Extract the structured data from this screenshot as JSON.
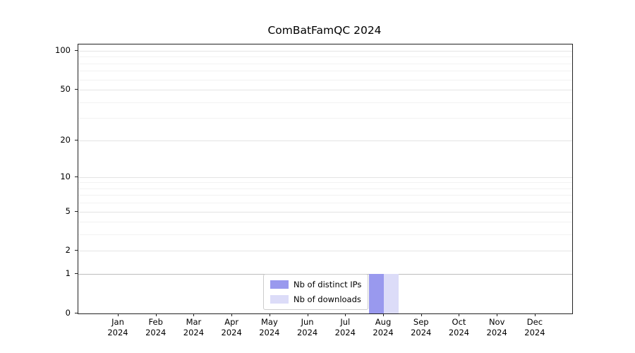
{
  "title": "ComBatFamQC 2024",
  "chart_data": {
    "type": "bar",
    "title": "ComBatFamQC 2024",
    "x_year": "2024",
    "categories": [
      "Jan",
      "Feb",
      "Mar",
      "Apr",
      "May",
      "Jun",
      "Jul",
      "Aug",
      "Sep",
      "Oct",
      "Nov",
      "Dec"
    ],
    "series": [
      {
        "name": "Nb of distinct IPs",
        "color": "#9999ee",
        "values": [
          0,
          0,
          0,
          0,
          0,
          0,
          0,
          1,
          0,
          0,
          0,
          0
        ]
      },
      {
        "name": "Nb of downloads",
        "color": "#dcdcf8",
        "values": [
          0,
          0,
          0,
          0,
          0,
          0,
          0,
          1,
          0,
          0,
          0,
          0
        ]
      }
    ],
    "y_ticks": [
      100,
      50,
      20,
      10,
      5,
      2,
      1,
      0
    ],
    "yscale": "log1p",
    "ylim": [
      0,
      112
    ],
    "grid": true,
    "legend_position": "lower center"
  }
}
